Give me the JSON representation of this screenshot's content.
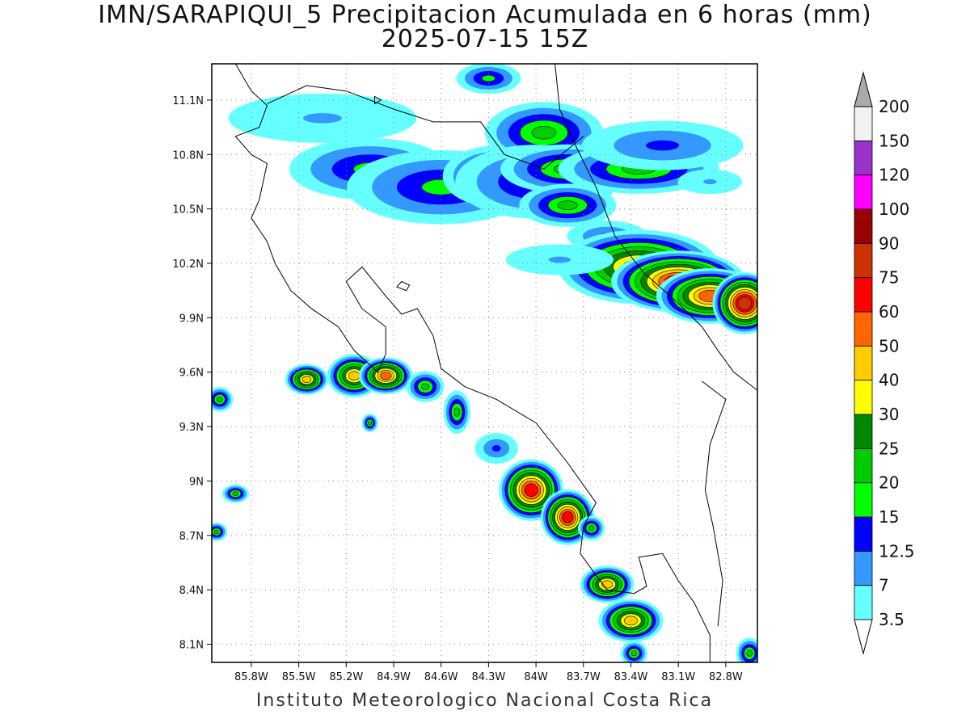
{
  "header": {
    "title": "IMN/SARAPIQUI_5 Precipitacion Acumulada en 6 horas (mm)",
    "subtitle": "2025-07-15 15Z"
  },
  "footer": {
    "credit": "Instituto Meteorologico Nacional Costa Rica"
  },
  "map": {
    "lon_range": [
      -86.05,
      -82.6
    ],
    "lat_range": [
      8.0,
      11.3
    ],
    "lat_ticks": [
      {
        "value": 11.1,
        "label": "11.1N"
      },
      {
        "value": 10.8,
        "label": "10.8N"
      },
      {
        "value": 10.5,
        "label": "10.5N"
      },
      {
        "value": 10.2,
        "label": "10.2N"
      },
      {
        "value": 9.9,
        "label": "9.9N"
      },
      {
        "value": 9.6,
        "label": "9.6N"
      },
      {
        "value": 9.3,
        "label": "9.3N"
      },
      {
        "value": 9.0,
        "label": "9N"
      },
      {
        "value": 8.7,
        "label": "8.7N"
      },
      {
        "value": 8.4,
        "label": "8.4N"
      },
      {
        "value": 8.1,
        "label": "8.1N"
      }
    ],
    "lon_ticks": [
      {
        "value": -85.8,
        "label": "85.8W"
      },
      {
        "value": -85.5,
        "label": "85.5W"
      },
      {
        "value": -85.2,
        "label": "85.2W"
      },
      {
        "value": -84.9,
        "label": "84.9W"
      },
      {
        "value": -84.6,
        "label": "84.6W"
      },
      {
        "value": -84.3,
        "label": "84.3W"
      },
      {
        "value": -84.0,
        "label": "84W"
      },
      {
        "value": -83.7,
        "label": "83.7W"
      },
      {
        "value": -83.4,
        "label": "83.4W"
      },
      {
        "value": -83.1,
        "label": "83.1W"
      },
      {
        "value": -82.8,
        "label": "82.8W"
      }
    ],
    "grid": "dotted",
    "coast": [
      [
        -85.9,
        11.3
      ],
      [
        -85.8,
        11.15
      ],
      [
        -85.7,
        11.07
      ],
      [
        -85.75,
        10.95
      ],
      [
        -85.9,
        10.9
      ],
      [
        -85.8,
        10.8
      ],
      [
        -85.7,
        10.75
      ],
      [
        -85.75,
        10.55
      ],
      [
        -85.8,
        10.45
      ],
      [
        -85.7,
        10.32
      ],
      [
        -85.65,
        10.2
      ],
      [
        -85.55,
        10.05
      ],
      [
        -85.42,
        9.95
      ],
      [
        -85.25,
        9.85
      ],
      [
        -85.15,
        9.72
      ],
      [
        -85.0,
        9.6
      ],
      [
        -84.95,
        9.7
      ],
      [
        -84.95,
        9.85
      ],
      [
        -85.1,
        9.95
      ],
      [
        -85.2,
        10.1
      ],
      [
        -85.1,
        10.18
      ],
      [
        -84.95,
        10.02
      ],
      [
        -84.85,
        9.92
      ],
      [
        -84.75,
        9.95
      ],
      [
        -84.65,
        9.8
      ],
      [
        -84.6,
        9.62
      ],
      [
        -84.45,
        9.52
      ],
      [
        -84.25,
        9.45
      ],
      [
        -84.0,
        9.32
      ],
      [
        -83.8,
        9.1
      ],
      [
        -83.62,
        8.88
      ],
      [
        -83.7,
        8.75
      ],
      [
        -83.72,
        8.6
      ],
      [
        -83.62,
        8.48
      ],
      [
        -83.55,
        8.4
      ],
      [
        -83.38,
        8.38
      ],
      [
        -83.3,
        8.42
      ],
      [
        -83.35,
        8.58
      ],
      [
        -83.2,
        8.6
      ],
      [
        -83.1,
        8.45
      ],
      [
        -83.0,
        8.33
      ],
      [
        -82.9,
        8.15
      ],
      [
        -82.9,
        8.0
      ]
    ],
    "caribbean_coast": [
      [
        -83.88,
        11.3
      ],
      [
        -83.85,
        11.05
      ],
      [
        -83.75,
        10.85
      ],
      [
        -83.62,
        10.62
      ],
      [
        -83.5,
        10.35
      ],
      [
        -83.32,
        10.15
      ],
      [
        -83.1,
        9.98
      ],
      [
        -82.95,
        9.85
      ],
      [
        -82.85,
        9.72
      ],
      [
        -82.75,
        9.6
      ],
      [
        -82.6,
        9.5
      ]
    ],
    "border_north": [
      [
        -85.7,
        11.08
      ],
      [
        -85.45,
        11.18
      ],
      [
        -85.2,
        11.15
      ],
      [
        -84.9,
        11.05
      ],
      [
        -84.65,
        10.98
      ],
      [
        -84.35,
        10.98
      ],
      [
        -84.2,
        10.8
      ],
      [
        -83.95,
        10.72
      ],
      [
        -83.7,
        10.9
      ]
    ],
    "border_south": [
      [
        -82.95,
        9.55
      ],
      [
        -82.8,
        9.45
      ],
      [
        -82.9,
        9.2
      ],
      [
        -82.93,
        8.95
      ],
      [
        -82.88,
        8.75
      ],
      [
        -82.82,
        8.45
      ],
      [
        -82.85,
        8.2
      ]
    ],
    "islands": [
      [
        [
          -84.85,
          10.1
        ],
        [
          -84.8,
          10.08
        ],
        [
          -84.82,
          10.05
        ],
        [
          -84.88,
          10.07
        ],
        [
          -84.85,
          10.1
        ]
      ],
      [
        [
          -85.02,
          11.12
        ],
        [
          -84.98,
          11.1
        ],
        [
          -85.02,
          11.08
        ],
        [
          -85.02,
          11.12
        ]
      ]
    ]
  },
  "precip_cells": [
    {
      "lon": -84.3,
      "lat": 11.22,
      "rx": 0.12,
      "ry": 0.05,
      "max": 15
    },
    {
      "lon": -85.35,
      "lat": 11.0,
      "rx": 0.35,
      "ry": 0.08,
      "max": 7
    },
    {
      "lon": -85.05,
      "lat": 10.72,
      "rx": 0.3,
      "ry": 0.1,
      "max": 15
    },
    {
      "lon": -84.6,
      "lat": 10.62,
      "rx": 0.35,
      "ry": 0.12,
      "max": 15
    },
    {
      "lon": -84.25,
      "lat": 10.68,
      "rx": 0.2,
      "ry": 0.1,
      "max": 20
    },
    {
      "lon": -83.95,
      "lat": 10.92,
      "rx": 0.22,
      "ry": 0.1,
      "max": 20
    },
    {
      "lon": -84.0,
      "lat": 10.65,
      "rx": 0.3,
      "ry": 0.12,
      "max": 15
    },
    {
      "lon": -83.8,
      "lat": 10.72,
      "rx": 0.25,
      "ry": 0.08,
      "max": 20
    },
    {
      "lon": -83.8,
      "lat": 10.52,
      "rx": 0.18,
      "ry": 0.07,
      "max": 20
    },
    {
      "lon": -83.35,
      "lat": 10.72,
      "rx": 0.3,
      "ry": 0.08,
      "max": 20
    },
    {
      "lon": -83.2,
      "lat": 10.85,
      "rx": 0.3,
      "ry": 0.08,
      "max": 12.5
    },
    {
      "lon": -83.55,
      "lat": 10.35,
      "rx": 0.15,
      "ry": 0.05,
      "max": 12.5
    },
    {
      "lon": -83.35,
      "lat": 10.18,
      "rx": 0.3,
      "ry": 0.12,
      "max": 40
    },
    {
      "lon": -83.1,
      "lat": 10.1,
      "rx": 0.25,
      "ry": 0.1,
      "max": 60
    },
    {
      "lon": -82.9,
      "lat": 10.02,
      "rx": 0.2,
      "ry": 0.09,
      "max": 50
    },
    {
      "lon": -82.68,
      "lat": 9.98,
      "rx": 0.12,
      "ry": 0.1,
      "max": 75
    },
    {
      "lon": -85.45,
      "lat": 9.56,
      "rx": 0.08,
      "ry": 0.05,
      "max": 40
    },
    {
      "lon": -85.15,
      "lat": 9.58,
      "rx": 0.1,
      "ry": 0.07,
      "max": 40
    },
    {
      "lon": -84.95,
      "lat": 9.58,
      "rx": 0.1,
      "ry": 0.06,
      "max": 50
    },
    {
      "lon": -84.7,
      "lat": 9.52,
      "rx": 0.07,
      "ry": 0.05,
      "max": 20
    },
    {
      "lon": -84.5,
      "lat": 9.38,
      "rx": 0.05,
      "ry": 0.07,
      "max": 20
    },
    {
      "lon": -84.25,
      "lat": 9.18,
      "rx": 0.08,
      "ry": 0.05,
      "max": 12.5
    },
    {
      "lon": -84.03,
      "lat": 8.95,
      "rx": 0.12,
      "ry": 0.1,
      "max": 60
    },
    {
      "lon": -83.8,
      "lat": 8.8,
      "rx": 0.1,
      "ry": 0.09,
      "max": 60
    },
    {
      "lon": -83.65,
      "lat": 8.74,
      "rx": 0.05,
      "ry": 0.04,
      "max": 20
    },
    {
      "lon": -83.55,
      "lat": 8.43,
      "rx": 0.1,
      "ry": 0.06,
      "max": 40
    },
    {
      "lon": -83.4,
      "lat": 8.23,
      "rx": 0.12,
      "ry": 0.07,
      "max": 40
    },
    {
      "lon": -83.38,
      "lat": 8.05,
      "rx": 0.05,
      "ry": 0.04,
      "max": 20
    },
    {
      "lon": -86.0,
      "lat": 9.45,
      "rx": 0.05,
      "ry": 0.04,
      "max": 20
    },
    {
      "lon": -85.9,
      "lat": 8.93,
      "rx": 0.05,
      "ry": 0.03,
      "max": 20
    },
    {
      "lon": -86.02,
      "lat": 8.72,
      "rx": 0.04,
      "ry": 0.03,
      "max": 20
    },
    {
      "lon": -85.05,
      "lat": 9.32,
      "rx": 0.03,
      "ry": 0.03,
      "max": 20
    },
    {
      "lon": -82.65,
      "lat": 8.05,
      "rx": 0.05,
      "ry": 0.05,
      "max": 20
    },
    {
      "lon": -83.85,
      "lat": 10.22,
      "rx": 0.2,
      "ry": 0.05,
      "max": 7
    },
    {
      "lon": -82.9,
      "lat": 10.65,
      "rx": 0.12,
      "ry": 0.04,
      "max": 7
    }
  ],
  "colorbar": {
    "levels": [
      "3.5",
      "7",
      "12.5",
      "15",
      "20",
      "25",
      "30",
      "40",
      "50",
      "60",
      "75",
      "90",
      "100",
      "120",
      "150",
      "200"
    ],
    "level_values": [
      3.5,
      7,
      12.5,
      15,
      20,
      25,
      30,
      40,
      50,
      60,
      75,
      90,
      100,
      120,
      150,
      200
    ],
    "colors": [
      "#66ffff",
      "#3399ff",
      "#0000ff",
      "#00ff00",
      "#00cc00",
      "#008800",
      "#ffff00",
      "#ffcc00",
      "#ff6600",
      "#ff0000",
      "#cc3300",
      "#990000",
      "#ff00ff",
      "#9933cc",
      "#f2f2f2",
      "#aaaaaa"
    ]
  }
}
